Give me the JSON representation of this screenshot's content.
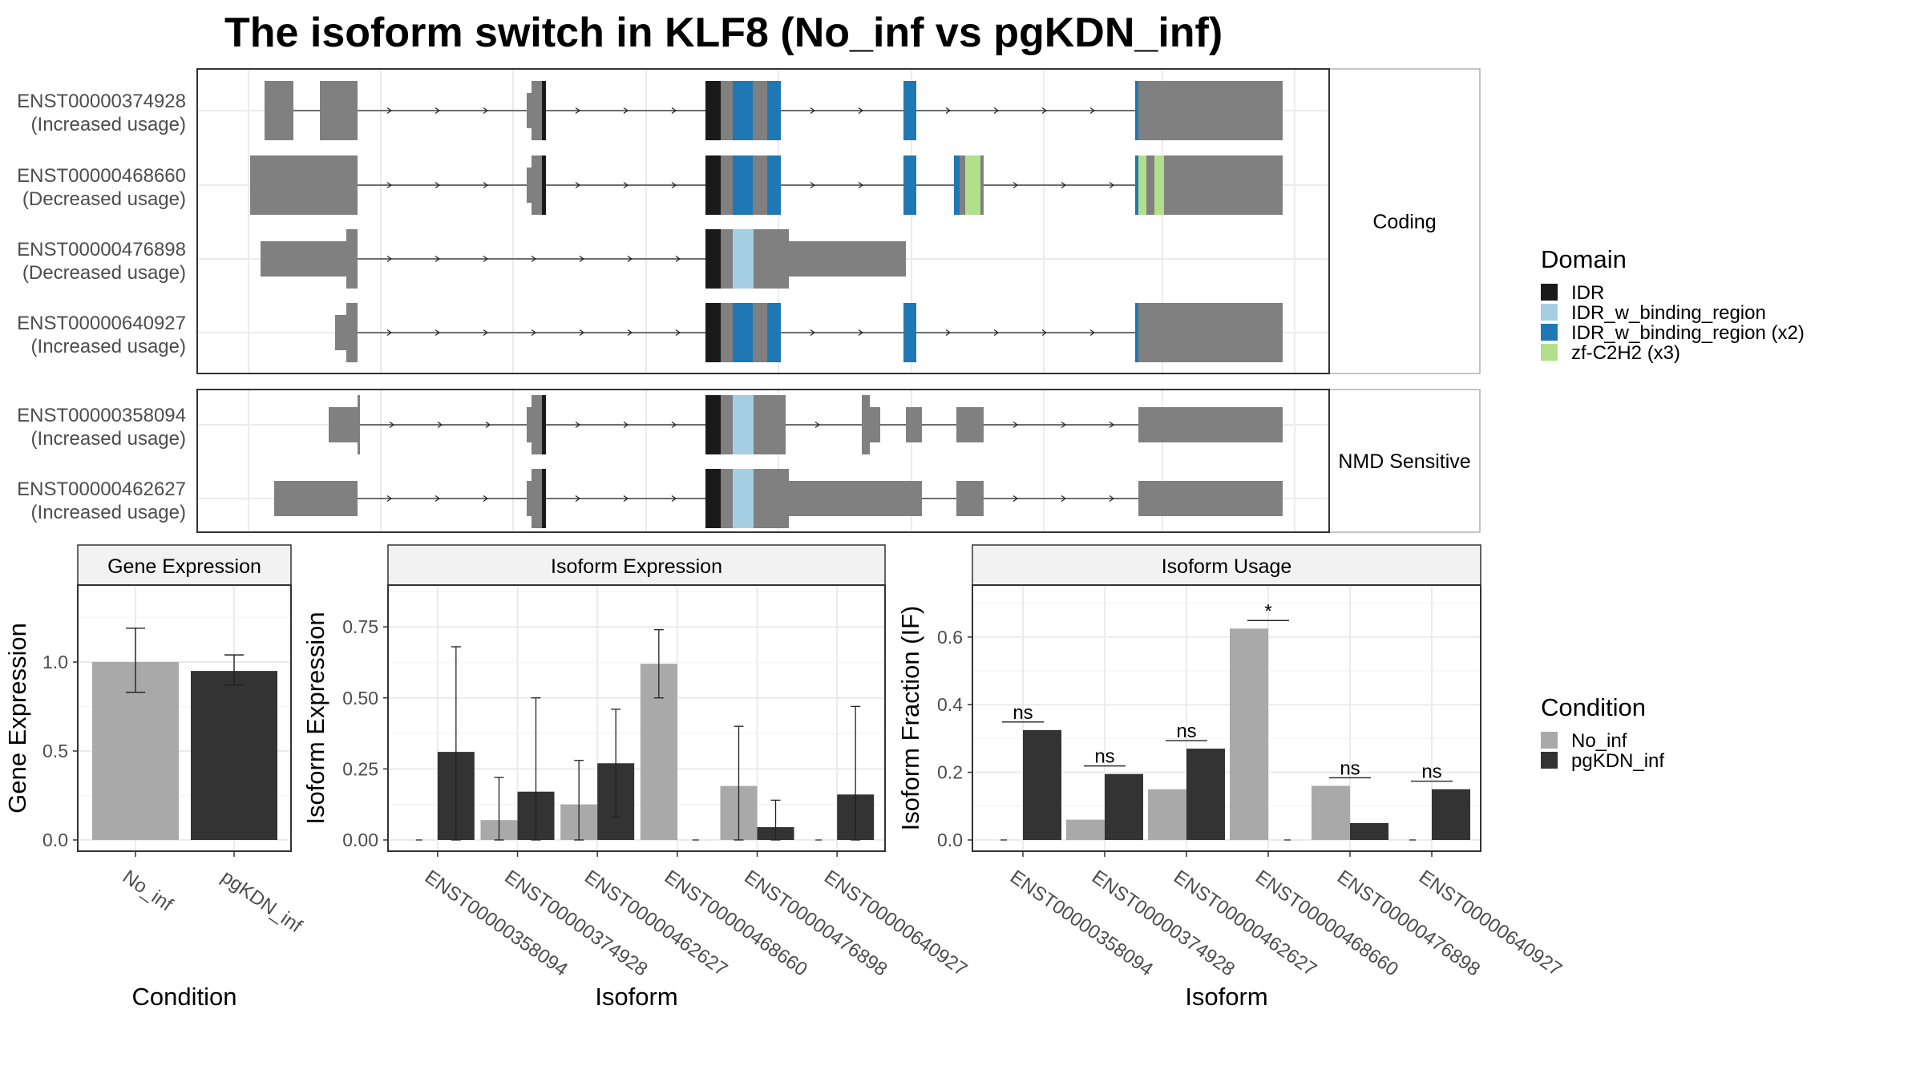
{
  "title": "The isoform switch in KLF8 (No_inf vs pgKDN_inf)",
  "colors": {
    "exon": "#808080",
    "IDR": "#1a1a1a",
    "IDR_w_binding_region": "#a6cee3",
    "IDR_w_binding_region_x2": "#1f78b4",
    "zf_C2H2": "#b2df8a",
    "No_inf": "#a9a9a9",
    "pgKDN_inf": "#333333",
    "grid": "#ebebeb",
    "strip_bg": "#f2f2f2"
  },
  "structure": {
    "facets": [
      {
        "label": "Coding",
        "transcripts": [
          {
            "id": "ENST00000374928",
            "note": "(Increased usage)"
          },
          {
            "id": "ENST00000468660",
            "note": "(Decreased usage)"
          },
          {
            "id": "ENST00000476898",
            "note": "(Decreased usage)"
          },
          {
            "id": "ENST00000640927",
            "note": "(Increased usage)"
          }
        ]
      },
      {
        "label": "NMD Sensitive",
        "transcripts": [
          {
            "id": "ENST00000358094",
            "note": "(Increased usage)"
          },
          {
            "id": "ENST00000462627",
            "note": "(Increased usage)"
          }
        ]
      }
    ]
  },
  "legend_domain": {
    "title": "Domain",
    "items": [
      {
        "label": "IDR",
        "color": "#1a1a1a"
      },
      {
        "label": "IDR_w_binding_region",
        "color": "#a6cee3"
      },
      {
        "label": "IDR_w_binding_region (x2)",
        "color": "#1f78b4"
      },
      {
        "label": "zf-C2H2 (x3)",
        "color": "#b2df8a"
      }
    ]
  },
  "legend_condition": {
    "title": "Condition",
    "items": [
      {
        "label": "No_inf",
        "color": "#a9a9a9"
      },
      {
        "label": "pgKDN_inf",
        "color": "#333333"
      }
    ]
  },
  "chart_data": [
    {
      "type": "bar",
      "title": "Gene Expression",
      "xlabel": "Condition",
      "ylabel": "Gene Expression",
      "categories": [
        "No_inf",
        "pgKDN_inf"
      ],
      "values": [
        1.0,
        0.95
      ],
      "error_low": [
        0.83,
        0.87
      ],
      "error_high": [
        1.19,
        1.04
      ],
      "yticks": [
        "0.0",
        "0.5",
        "1.0"
      ],
      "ylim": [
        -0.02,
        1.45
      ],
      "grid": true
    },
    {
      "type": "bar",
      "title": "Isoform Expression",
      "xlabel": "Isoform",
      "ylabel": "Isoform Expression",
      "categories": [
        "ENST00000358094",
        "ENST00000374928",
        "ENST00000462627",
        "ENST00000468660",
        "ENST00000476898",
        "ENST00000640927"
      ],
      "series": [
        {
          "name": "No_inf",
          "values": [
            0.0,
            0.07,
            0.125,
            0.62,
            0.19,
            0.0
          ],
          "error_low": [
            0.0,
            0.0,
            0.0,
            0.5,
            0.0,
            0.0
          ],
          "error_high": [
            0.0,
            0.22,
            0.28,
            0.74,
            0.4,
            0.0
          ]
        },
        {
          "name": "pgKDN_inf",
          "values": [
            0.31,
            0.17,
            0.27,
            0.0,
            0.045,
            0.16
          ],
          "error_low": [
            0.0,
            0.0,
            0.08,
            0.0,
            0.0,
            0.0
          ],
          "error_high": [
            0.68,
            0.5,
            0.46,
            0.0,
            0.14,
            0.47
          ]
        }
      ],
      "yticks": [
        "0.00",
        "0.25",
        "0.50",
        "0.75"
      ],
      "ylim": [
        -0.02,
        0.9
      ],
      "grid": true
    },
    {
      "type": "bar",
      "title": "Isoform Usage",
      "xlabel": "Isoform",
      "ylabel": "Isoform Fraction (IF)",
      "categories": [
        "ENST00000358094",
        "ENST00000374928",
        "ENST00000462627",
        "ENST00000468660",
        "ENST00000476898",
        "ENST00000640927"
      ],
      "series": [
        {
          "name": "No_inf",
          "values": [
            0.0,
            0.06,
            0.15,
            0.625,
            0.16,
            0.0
          ]
        },
        {
          "name": "pgKDN_inf",
          "values": [
            0.325,
            0.195,
            0.27,
            0.0,
            0.05,
            0.15
          ]
        }
      ],
      "significance": [
        "ns",
        "ns",
        "ns",
        "*",
        "ns",
        "ns"
      ],
      "yticks": [
        "0.0",
        "0.2",
        "0.4",
        "0.6"
      ],
      "ylim": [
        -0.02,
        0.76
      ],
      "grid": true
    }
  ]
}
